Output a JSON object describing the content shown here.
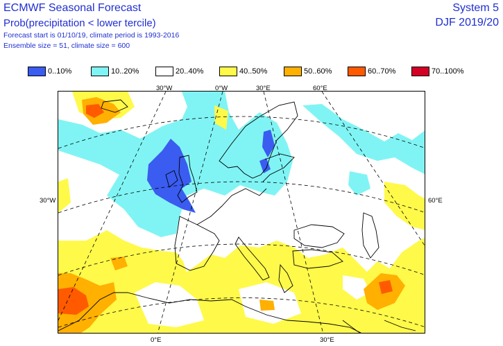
{
  "header": {
    "title": "ECMWF Seasonal Forecast",
    "subtitle": "Prob(precipitation < lower tercile)",
    "forecast_info": "Forecast start is 01/10/19, climate period is 1993-2016",
    "ensemble_info": "Ensemble size = 51, climate size = 600",
    "system": "System 5",
    "season": "DJF 2019/20"
  },
  "legend": [
    {
      "label": "0..10%",
      "color": "#3a5cf0"
    },
    {
      "label": "10..20%",
      "color": "#80f4f4"
    },
    {
      "label": "20..40%",
      "color": "#ffffff"
    },
    {
      "label": "40..50%",
      "color": "#fff94a"
    },
    {
      "label": "50..60%",
      "color": "#ffb000"
    },
    {
      "label": "60..70%",
      "color": "#ff5a00"
    },
    {
      "label": "70..100%",
      "color": "#d40025"
    }
  ],
  "axes": {
    "top": [
      "30°W",
      "0°W",
      "30°E",
      "60°E"
    ],
    "left": "30°W",
    "right": "60°E",
    "bottom": [
      "0°E",
      "30°E"
    ]
  }
}
